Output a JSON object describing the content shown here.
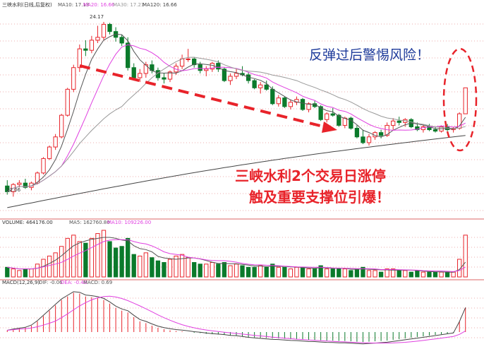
{
  "colors": {
    "up": "#e8232a",
    "down": "#0b7a2b",
    "ma5": "#555555",
    "ma10": "#e040e0",
    "ma30": "#999999",
    "ma120": "#444444",
    "arrow": "#e8232a",
    "annotation_blue": "#1e3a9a",
    "annotation_red": "#e8232a",
    "grid": "#d33333"
  },
  "header": {
    "stock_title": "三峡水利(日线,后复权)",
    "ma10": "MA10: 17.13",
    "ma20": "MA20: 16.66",
    "ma30": "MA30: 17.21",
    "ma120": "MA120: 16.66"
  },
  "volume_header": {
    "label": "VOLUME: 464176.00",
    "ma5": "MA5: 162760.80",
    "ma10": "MA10: 109226.00"
  },
  "macd_header": {
    "label": "MACD(12,26,9)",
    "dif": "DIF: -0.06",
    "dea": "DEA: -0.40",
    "macd": "MACD: 0.69"
  },
  "annotations": {
    "warning": "反弹过后警惕风险！",
    "line1_a": "三峡水利",
    "line1_b": "2",
    "line1_c": "个交易日涨停",
    "line2": "触及重要支撑位引爆！"
  },
  "chart_data": {
    "type": "candlestick",
    "price_markers": {
      "high": "24.17",
      "low": "12.06"
    },
    "candles": [
      {
        "o": 12.8,
        "h": 13.2,
        "l": 12.2,
        "c": 12.4
      },
      {
        "o": 12.4,
        "h": 13.0,
        "l": 12.06,
        "c": 12.9
      },
      {
        "o": 12.9,
        "h": 13.2,
        "l": 12.7,
        "c": 13.0
      },
      {
        "o": 13.0,
        "h": 13.3,
        "l": 12.6,
        "c": 12.7
      },
      {
        "o": 12.7,
        "h": 13.1,
        "l": 12.5,
        "c": 13.0
      },
      {
        "o": 13.0,
        "h": 13.8,
        "l": 12.9,
        "c": 13.7
      },
      {
        "o": 13.7,
        "h": 14.8,
        "l": 13.6,
        "c": 14.7
      },
      {
        "o": 14.7,
        "h": 15.6,
        "l": 14.6,
        "c": 15.5
      },
      {
        "o": 15.5,
        "h": 16.4,
        "l": 15.3,
        "c": 16.2
      },
      {
        "o": 16.2,
        "h": 17.8,
        "l": 16.1,
        "c": 17.7
      },
      {
        "o": 17.7,
        "h": 19.6,
        "l": 17.6,
        "c": 19.5
      },
      {
        "o": 19.5,
        "h": 21.2,
        "l": 19.3,
        "c": 21.0
      },
      {
        "o": 21.0,
        "h": 22.6,
        "l": 20.7,
        "c": 22.3
      },
      {
        "o": 22.3,
        "h": 22.9,
        "l": 21.8,
        "c": 22.2
      },
      {
        "o": 22.2,
        "h": 23.2,
        "l": 22.0,
        "c": 22.9
      },
      {
        "o": 22.9,
        "h": 23.9,
        "l": 22.7,
        "c": 23.1
      },
      {
        "o": 23.1,
        "h": 24.17,
        "l": 22.9,
        "c": 24.0
      },
      {
        "o": 24.0,
        "h": 24.1,
        "l": 23.3,
        "c": 23.5
      },
      {
        "o": 23.5,
        "h": 23.8,
        "l": 22.8,
        "c": 23.1
      },
      {
        "o": 23.1,
        "h": 23.3,
        "l": 22.5,
        "c": 22.7
      },
      {
        "o": 22.7,
        "h": 23.1,
        "l": 20.8,
        "c": 21.0
      },
      {
        "o": 21.0,
        "h": 21.3,
        "l": 20.1,
        "c": 20.3
      },
      {
        "o": 20.3,
        "h": 20.9,
        "l": 20.0,
        "c": 20.6
      },
      {
        "o": 20.6,
        "h": 21.4,
        "l": 20.3,
        "c": 21.2
      },
      {
        "o": 21.2,
        "h": 21.5,
        "l": 20.6,
        "c": 20.8
      },
      {
        "o": 20.8,
        "h": 21.0,
        "l": 20.1,
        "c": 20.3
      },
      {
        "o": 20.3,
        "h": 20.6,
        "l": 19.9,
        "c": 20.2
      },
      {
        "o": 20.2,
        "h": 20.8,
        "l": 20.0,
        "c": 20.7
      },
      {
        "o": 20.7,
        "h": 21.3,
        "l": 20.5,
        "c": 21.1
      },
      {
        "o": 21.1,
        "h": 21.9,
        "l": 20.9,
        "c": 21.6
      },
      {
        "o": 21.6,
        "h": 22.3,
        "l": 21.4,
        "c": 21.6
      },
      {
        "o": 21.6,
        "h": 21.7,
        "l": 21.0,
        "c": 21.2
      },
      {
        "o": 21.2,
        "h": 21.4,
        "l": 20.6,
        "c": 20.8
      },
      {
        "o": 20.8,
        "h": 21.1,
        "l": 20.4,
        "c": 20.9
      },
      {
        "o": 20.9,
        "h": 21.4,
        "l": 20.7,
        "c": 21.3
      },
      {
        "o": 21.3,
        "h": 21.5,
        "l": 20.7,
        "c": 20.9
      },
      {
        "o": 20.9,
        "h": 21.0,
        "l": 20.0,
        "c": 20.1
      },
      {
        "o": 20.1,
        "h": 20.6,
        "l": 19.8,
        "c": 20.4
      },
      {
        "o": 20.4,
        "h": 20.9,
        "l": 20.2,
        "c": 20.6
      },
      {
        "o": 20.6,
        "h": 21.1,
        "l": 20.4,
        "c": 20.5
      },
      {
        "o": 20.5,
        "h": 20.7,
        "l": 19.9,
        "c": 20.1
      },
      {
        "o": 20.1,
        "h": 20.2,
        "l": 19.5,
        "c": 19.6
      },
      {
        "o": 19.6,
        "h": 20.0,
        "l": 19.2,
        "c": 19.8
      },
      {
        "o": 19.8,
        "h": 20.1,
        "l": 19.4,
        "c": 19.5
      },
      {
        "o": 19.5,
        "h": 19.7,
        "l": 18.4,
        "c": 18.5
      },
      {
        "o": 18.5,
        "h": 19.1,
        "l": 18.3,
        "c": 18.9
      },
      {
        "o": 18.9,
        "h": 19.0,
        "l": 18.2,
        "c": 18.3
      },
      {
        "o": 18.3,
        "h": 18.8,
        "l": 18.1,
        "c": 18.6
      },
      {
        "o": 18.6,
        "h": 19.0,
        "l": 18.4,
        "c": 18.8
      },
      {
        "o": 18.8,
        "h": 18.9,
        "l": 18.0,
        "c": 18.1
      },
      {
        "o": 18.1,
        "h": 18.6,
        "l": 17.9,
        "c": 18.5
      },
      {
        "o": 18.5,
        "h": 18.7,
        "l": 18.2,
        "c": 18.3
      },
      {
        "o": 18.3,
        "h": 18.4,
        "l": 17.3,
        "c": 17.4
      },
      {
        "o": 17.4,
        "h": 17.9,
        "l": 17.2,
        "c": 17.8
      },
      {
        "o": 17.8,
        "h": 18.2,
        "l": 17.6,
        "c": 17.7
      },
      {
        "o": 17.7,
        "h": 17.8,
        "l": 16.9,
        "c": 17.0
      },
      {
        "o": 17.0,
        "h": 17.6,
        "l": 16.8,
        "c": 17.5
      },
      {
        "o": 17.5,
        "h": 17.6,
        "l": 16.7,
        "c": 16.8
      },
      {
        "o": 16.8,
        "h": 17.0,
        "l": 16.1,
        "c": 16.2
      },
      {
        "o": 16.2,
        "h": 16.7,
        "l": 15.7,
        "c": 15.8
      },
      {
        "o": 15.8,
        "h": 16.4,
        "l": 15.6,
        "c": 16.2
      },
      {
        "o": 16.2,
        "h": 16.6,
        "l": 16.0,
        "c": 16.5
      },
      {
        "o": 16.5,
        "h": 16.7,
        "l": 16.1,
        "c": 16.3
      },
      {
        "o": 16.3,
        "h": 17.2,
        "l": 16.2,
        "c": 17.0
      },
      {
        "o": 17.0,
        "h": 17.5,
        "l": 16.7,
        "c": 17.3
      },
      {
        "o": 17.3,
        "h": 17.6,
        "l": 17.0,
        "c": 17.2
      },
      {
        "o": 17.2,
        "h": 17.5,
        "l": 16.9,
        "c": 17.4
      },
      {
        "o": 17.4,
        "h": 17.5,
        "l": 16.8,
        "c": 16.9
      },
      {
        "o": 16.9,
        "h": 17.2,
        "l": 16.6,
        "c": 16.7
      },
      {
        "o": 16.7,
        "h": 17.0,
        "l": 16.5,
        "c": 16.9
      },
      {
        "o": 16.9,
        "h": 17.1,
        "l": 16.6,
        "c": 16.7
      },
      {
        "o": 16.7,
        "h": 16.9,
        "l": 16.5,
        "c": 16.6
      },
      {
        "o": 16.6,
        "h": 17.0,
        "l": 16.5,
        "c": 16.9
      },
      {
        "o": 16.9,
        "h": 17.1,
        "l": 16.6,
        "c": 16.7
      },
      {
        "o": 16.7,
        "h": 16.9,
        "l": 16.5,
        "c": 16.8
      },
      {
        "o": 16.8,
        "h": 17.9,
        "l": 16.7,
        "c": 17.8
      },
      {
        "o": 17.8,
        "h": 19.6,
        "l": 17.8,
        "c": 19.6
      }
    ],
    "volume": [
      6,
      5,
      4,
      5,
      5,
      8,
      11,
      13,
      15,
      19,
      24,
      26,
      22,
      21,
      24,
      27,
      29,
      22,
      18,
      19,
      24,
      14,
      13,
      15,
      12,
      10,
      9,
      11,
      13,
      14,
      12,
      9,
      8,
      8,
      9,
      8,
      9,
      7,
      8,
      7,
      6,
      6,
      7,
      6,
      8,
      6,
      6,
      5,
      6,
      6,
      5,
      5,
      7,
      5,
      5,
      5,
      5,
      4,
      5,
      6,
      4,
      4,
      3,
      5,
      5,
      4,
      4,
      3,
      4,
      3,
      3,
      3,
      3,
      3,
      3,
      11,
      26
    ],
    "macd": {
      "dif_label": "DIF",
      "dea_label": "DEA",
      "histogram": [
        0.05,
        0.08,
        0.1,
        0.12,
        0.18,
        0.3,
        0.45,
        0.6,
        0.75,
        0.9,
        1.0,
        1.1,
        1.08,
        1.0,
        0.98,
        0.95,
        0.9,
        0.8,
        0.68,
        0.6,
        0.55,
        0.42,
        0.3,
        0.25,
        0.18,
        0.12,
        0.08,
        0.05,
        0.03,
        0.02,
        0.0,
        -0.02,
        -0.03,
        -0.05,
        -0.06,
        -0.07,
        -0.08,
        -0.1,
        -0.1,
        -0.12,
        -0.14,
        -0.15,
        -0.16,
        -0.17,
        -0.18,
        -0.18,
        -0.19,
        -0.2,
        -0.2,
        -0.21,
        -0.22,
        -0.22,
        -0.23,
        -0.24,
        -0.24,
        -0.25,
        -0.25,
        -0.26,
        -0.27,
        -0.28,
        -0.27,
        -0.26,
        -0.25,
        -0.24,
        -0.22,
        -0.2,
        -0.18,
        -0.16,
        -0.14,
        -0.12,
        -0.1,
        -0.08,
        -0.06,
        -0.04,
        -0.02,
        0.3,
        0.69
      ]
    }
  }
}
